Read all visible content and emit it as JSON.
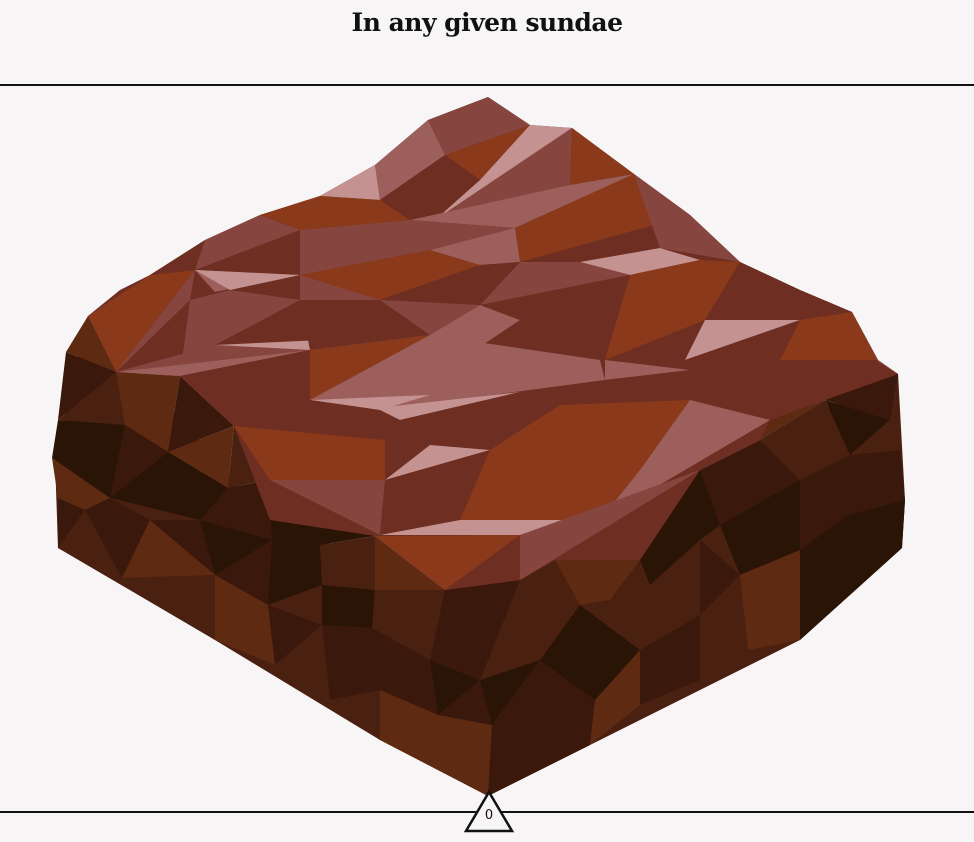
{
  "header": {
    "title": "In any given sundae"
  },
  "marker": {
    "value": "0",
    "icon": "triangle-marker-icon"
  },
  "colors": {
    "background": "#f7f5f6",
    "top_dark": "#6e2e22",
    "top_mid": "#86463f",
    "top_orange": "#8a3a1a",
    "top_pink": "#c49290",
    "top_rose": "#9c5f5c",
    "side_light": "#5e2a12",
    "side_mid": "#4a2010",
    "side_dark": "#3a180c",
    "side_darkest": "#2a1406"
  }
}
